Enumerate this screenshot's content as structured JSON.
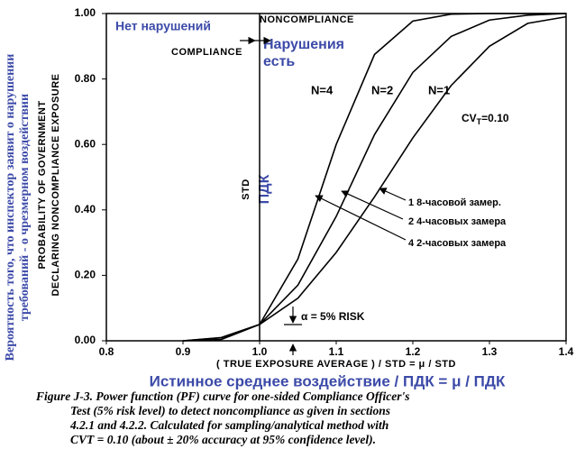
{
  "chart_data": {
    "type": "line",
    "x": [
      0.9,
      0.95,
      1.0,
      1.05,
      1.1,
      1.15,
      1.2,
      1.25,
      1.3,
      1.35,
      1.4
    ],
    "series": [
      {
        "name": "N=4",
        "color": "#000000",
        "values": [
          0,
          0.004,
          0.05,
          0.25,
          0.6,
          0.875,
          0.977,
          0.998,
          1,
          1,
          1
        ]
      },
      {
        "name": "N=2",
        "color": "#000000",
        "values": [
          0,
          0.009,
          0.05,
          0.17,
          0.38,
          0.63,
          0.82,
          0.93,
          0.98,
          0.995,
          1
        ]
      },
      {
        "name": "N=1",
        "color": "#000000",
        "values": [
          0,
          0.01,
          0.05,
          0.13,
          0.27,
          0.44,
          0.62,
          0.78,
          0.9,
          0.97,
          0.99
        ]
      }
    ],
    "xlim": [
      0.8,
      1.4
    ],
    "ylim": [
      0,
      1
    ],
    "xticks": [
      0.8,
      0.9,
      {
        "value": 1,
        "label": "1.0"
      },
      1.1,
      1.2,
      1.3,
      1.4
    ],
    "yticks": [
      {
        "value": 0,
        "label": "0.00"
      },
      {
        "value": 0.2,
        "label": "0.20"
      },
      {
        "value": 0.4,
        "label": "0.40"
      },
      {
        "value": 0.6,
        "label": "0.60"
      },
      {
        "value": 0.8,
        "label": "0.80"
      },
      {
        "value": 1,
        "label": "1.00"
      }
    ],
    "vline": 1,
    "xlabel": "( TRUE EXPOSURE AVERAGE ) / STD = μ / STD",
    "xlabel_ru": "Истинное среднее воздействие / ПДК  = μ / ПДК",
    "ylabel": [
      "PROBABILITY OF GOVERNMENT",
      "DECLARING NONCOMPLIANCE EXPOSURE"
    ],
    "ylabel_ru": [
      "Вероятность того, что инспектор заявит о нарушении",
      "требований - о чрезмерном воздействии"
    ],
    "annotations": {
      "no_violation": "Нет нарушений",
      "noncompliance": "NONCOMPLIANCE",
      "compliance": "COMPLIANCE",
      "violation": [
        "Нарушения",
        "есть"
      ],
      "std": "STD",
      "pdk": "ПДК",
      "cv": "CV",
      "cv_sub": "T",
      "cv_value": "=0.10",
      "notes": [
        "1   8-часовой замер.",
        "2   4-часовых замера",
        "4   2-часовых замера"
      ],
      "risk": "α = 5% RISK"
    },
    "caption": [
      "Figure J-3. Power function (PF) curve for one-sided Compliance Officer's",
      "Test (5% risk level) to detect noncompliance as given in sections",
      "4.2.1 and 4.2.2.  Calculated for sampling/analytical method with",
      "CVT = 0.10 (about ± 20% accuracy at 95% confidence level)."
    ]
  }
}
